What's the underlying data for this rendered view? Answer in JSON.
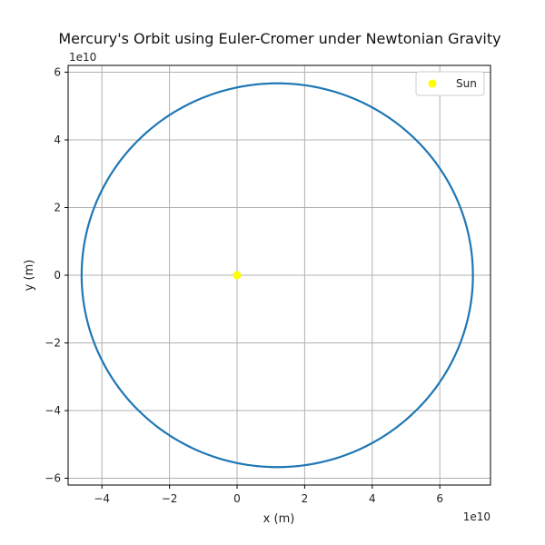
{
  "chart_data": {
    "type": "scatter",
    "title": "Mercury's Orbit using Euler-Cromer under Newtonian Gravity",
    "xlabel": "x (m)",
    "ylabel": "y (m)",
    "x_offset_text": "1e10",
    "y_offset_text": "1e10",
    "xlim": [
      -5.0,
      7.5
    ],
    "ylim": [
      -6.2,
      6.2
    ],
    "xticks": [
      -4,
      -2,
      0,
      2,
      4,
      6
    ],
    "yticks": [
      -6,
      -4,
      -2,
      0,
      2,
      4,
      6
    ],
    "tick_multiplier": 10000000000.0,
    "grid": true,
    "legend": {
      "placement": "top-right",
      "entries": [
        {
          "label": "Sun",
          "color": "#ffff00"
        }
      ]
    },
    "series": [
      {
        "kind": "orbit",
        "color": "#1f77b4",
        "focus": [
          0.0,
          0.0
        ],
        "perihelion_x": -4.6,
        "aphelion_x": 6.98,
        "semi_minor_axis": 5.67
      },
      {
        "name": "Sun",
        "kind": "point",
        "color": "#ffff00",
        "x": 0.0,
        "y": 0.0
      }
    ]
  }
}
